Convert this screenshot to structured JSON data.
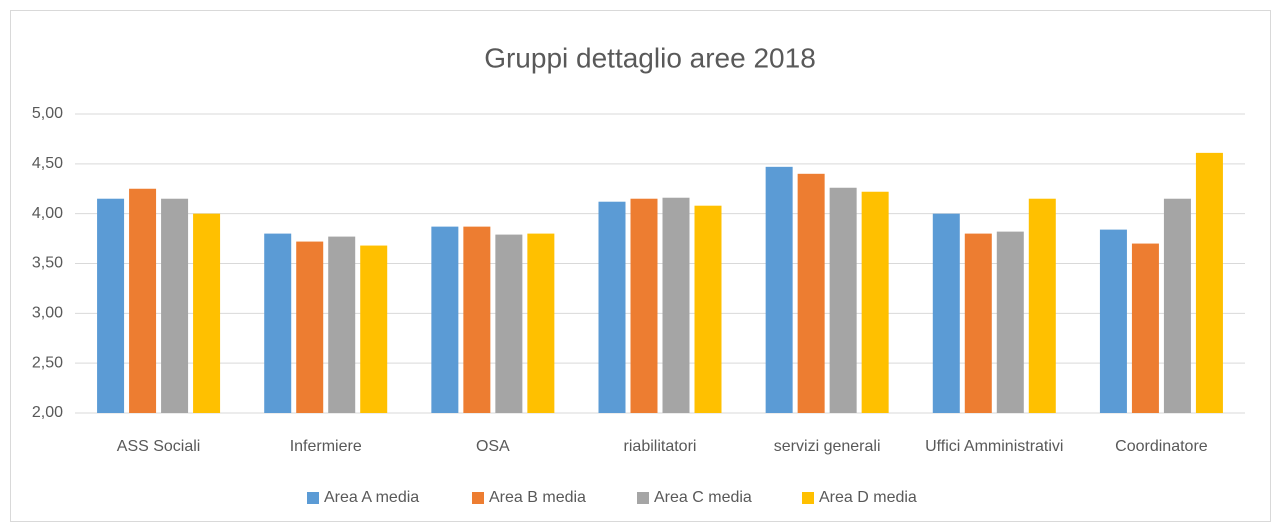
{
  "chart_data": {
    "type": "bar",
    "title": "Gruppi dettaglio aree 2018",
    "categories": [
      "ASS Sociali",
      "Infermiere",
      "OSA",
      "riabilitatori",
      "servizi generali",
      "Uffici Amministrativi",
      "Coordinatore"
    ],
    "series": [
      {
        "name": "Area A media",
        "color": "#5b9bd5",
        "values": [
          4.15,
          3.8,
          3.87,
          4.12,
          4.47,
          4.0,
          3.84
        ]
      },
      {
        "name": "Area B media",
        "color": "#ed7d31",
        "values": [
          4.25,
          3.72,
          3.87,
          4.15,
          4.4,
          3.8,
          3.7
        ]
      },
      {
        "name": "Area C media",
        "color": "#a5a5a5",
        "values": [
          4.15,
          3.77,
          3.79,
          4.16,
          4.26,
          3.82,
          4.15
        ]
      },
      {
        "name": "Area D media",
        "color": "#ffc000",
        "values": [
          4.0,
          3.68,
          3.8,
          4.08,
          4.22,
          4.15,
          4.61
        ]
      }
    ],
    "ylim": [
      2,
      5
    ],
    "yticks": [
      {
        "value": 2,
        "label": "2,00"
      },
      {
        "value": 2.5,
        "label": "2,50"
      },
      {
        "value": 3,
        "label": "3,00"
      },
      {
        "value": 3.5,
        "label": "3,50"
      },
      {
        "value": 4,
        "label": "4,00"
      },
      {
        "value": 4.5,
        "label": "4,50"
      },
      {
        "value": 5,
        "label": "5,00"
      }
    ],
    "grid": true,
    "legend": "bottom"
  }
}
